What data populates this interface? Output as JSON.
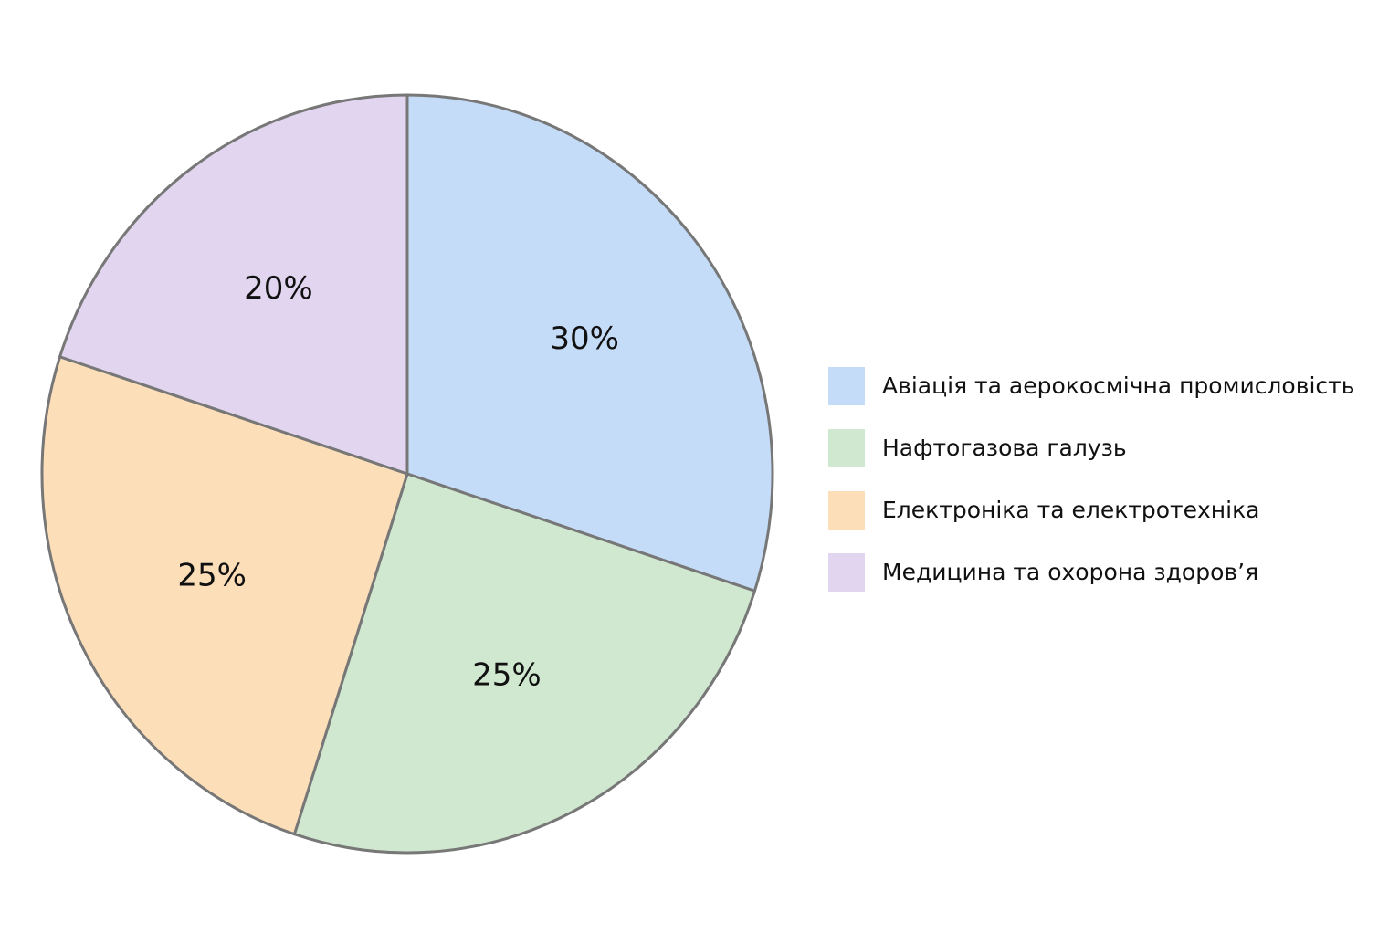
{
  "chart_data": {
    "type": "pie",
    "categories": [
      "Авіація та аерокосмічна промисловість",
      "Нафтогазова галузь",
      "Електроніка та електротехніка",
      "Медицина та охорона здоров’я"
    ],
    "values": [
      30,
      25,
      25,
      20
    ],
    "value_labels": [
      "30%",
      "25%",
      "25%",
      "20%"
    ],
    "colors": [
      "#c5dcf8",
      "#d0e8cf",
      "#fcdeb9",
      "#e2d5ef"
    ],
    "legend": "right"
  }
}
